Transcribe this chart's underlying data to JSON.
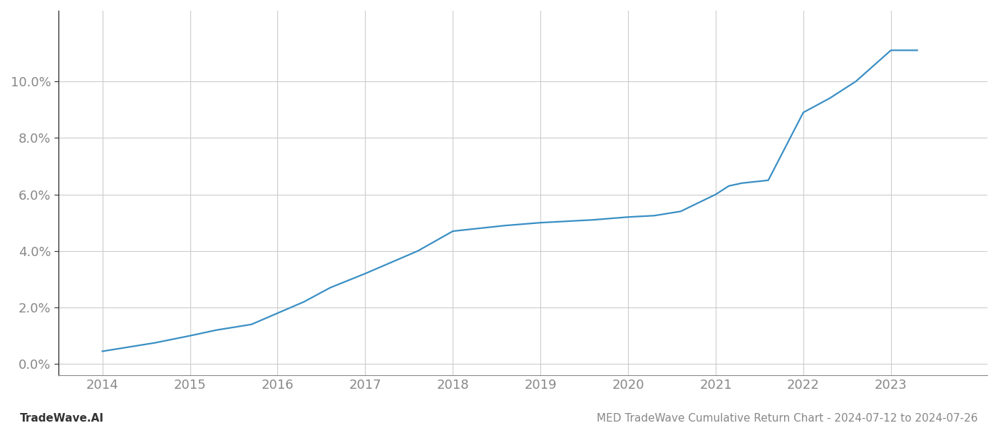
{
  "x_values": [
    2014.0,
    2014.3,
    2014.6,
    2015.0,
    2015.3,
    2015.7,
    2016.0,
    2016.3,
    2016.6,
    2017.0,
    2017.3,
    2017.6,
    2018.0,
    2018.15,
    2018.3,
    2018.6,
    2019.0,
    2019.3,
    2019.6,
    2020.0,
    2020.3,
    2020.6,
    2021.0,
    2021.15,
    2021.3,
    2021.6,
    2022.0,
    2022.3,
    2022.6,
    2023.0,
    2023.3
  ],
  "y_values": [
    0.0045,
    0.006,
    0.0075,
    0.01,
    0.012,
    0.014,
    0.018,
    0.022,
    0.027,
    0.032,
    0.036,
    0.04,
    0.047,
    0.0475,
    0.048,
    0.049,
    0.05,
    0.0505,
    0.051,
    0.052,
    0.0525,
    0.054,
    0.06,
    0.063,
    0.064,
    0.065,
    0.089,
    0.094,
    0.1,
    0.111,
    0.111
  ],
  "line_color": "#3a8fc4",
  "line_width": 1.6,
  "background_color": "#ffffff",
  "grid_color": "#cccccc",
  "tick_label_color": "#888888",
  "ylabel_ticks": [
    0.0,
    0.02,
    0.04,
    0.06,
    0.08,
    0.1
  ],
  "xlim": [
    2013.5,
    2024.1
  ],
  "ylim": [
    -0.004,
    0.125
  ],
  "xticks": [
    2014,
    2015,
    2016,
    2017,
    2018,
    2019,
    2020,
    2021,
    2022,
    2023
  ],
  "footer_left": "TradeWave.AI",
  "footer_right": "MED TradeWave Cumulative Return Chart - 2024-07-12 to 2024-07-26",
  "footer_fontsize": 11,
  "tick_fontsize": 13,
  "left_spine_color": "#333333",
  "bottom_spine_color": "#888888"
}
